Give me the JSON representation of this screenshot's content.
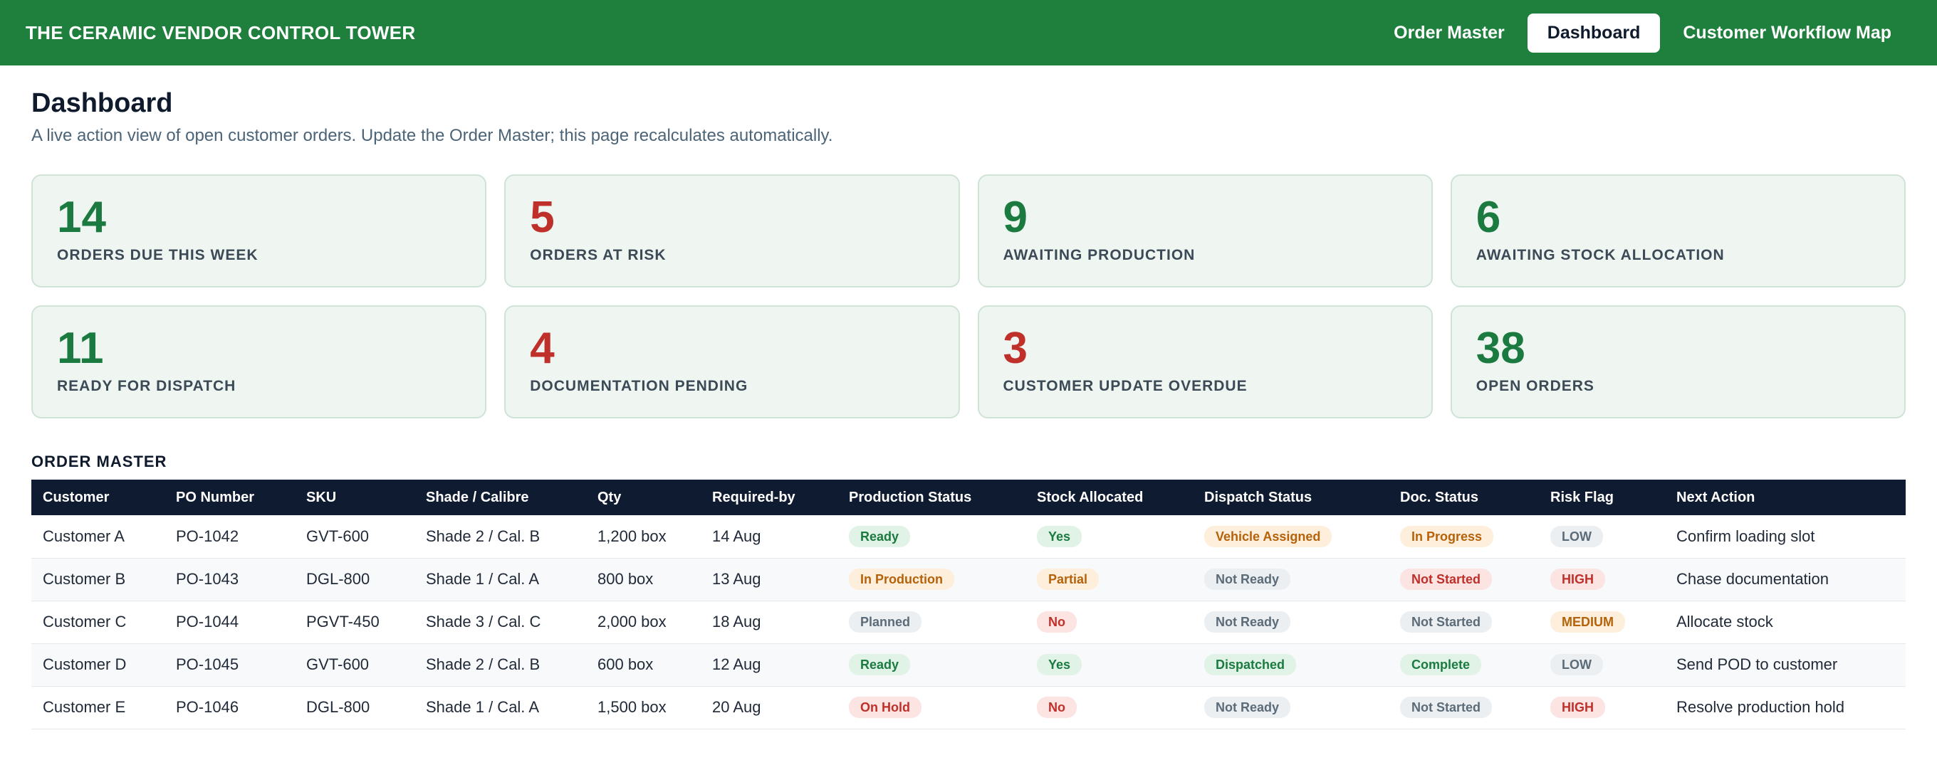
{
  "app": {
    "title": "THE CERAMIC VENDOR CONTROL TOWER",
    "nav": [
      {
        "label": "Order Master",
        "active": false
      },
      {
        "label": "Dashboard",
        "active": true
      },
      {
        "label": "Customer Workflow Map",
        "active": false
      }
    ]
  },
  "page": {
    "title": "Dashboard",
    "subtitle": "A live action view of open customer orders. Update the Order Master; this page recalculates automatically."
  },
  "kpis": [
    {
      "value": "14",
      "label": "ORDERS DUE THIS WEEK",
      "tone": "green"
    },
    {
      "value": "5",
      "label": "ORDERS AT RISK",
      "tone": "red"
    },
    {
      "value": "9",
      "label": "AWAITING PRODUCTION",
      "tone": "green"
    },
    {
      "value": "6",
      "label": "AWAITING STOCK ALLOCATION",
      "tone": "green"
    },
    {
      "value": "11",
      "label": "READY FOR DISPATCH",
      "tone": "green"
    },
    {
      "value": "4",
      "label": "DOCUMENTATION PENDING",
      "tone": "red"
    },
    {
      "value": "3",
      "label": "CUSTOMER UPDATE OVERDUE",
      "tone": "red"
    },
    {
      "value": "38",
      "label": "OPEN ORDERS",
      "tone": "green"
    }
  ],
  "order_master": {
    "title": "ORDER MASTER",
    "columns": [
      "Customer",
      "PO Number",
      "SKU",
      "Shade / Calibre",
      "Qty",
      "Required-by",
      "Production Status",
      "Stock Allocated",
      "Dispatch Status",
      "Doc. Status",
      "Risk Flag",
      "Next Action"
    ],
    "rows": [
      {
        "customer": "Customer A",
        "po": "PO-1042",
        "sku": "GVT-600",
        "shade": "Shade 2 / Cal. B",
        "qty": "1,200 box",
        "required_by": "14 Aug",
        "production": "Ready",
        "stock": "Yes",
        "dispatch": "Vehicle Assigned",
        "doc": "In Progress",
        "risk": "LOW",
        "next_action": "Confirm loading slot"
      },
      {
        "customer": "Customer B",
        "po": "PO-1043",
        "sku": "DGL-800",
        "shade": "Shade 1 / Cal. A",
        "qty": "800 box",
        "required_by": "13 Aug",
        "production": "In Production",
        "stock": "Partial",
        "dispatch": "Not Ready",
        "doc": "Not Started",
        "risk": "HIGH",
        "next_action": "Chase documentation"
      },
      {
        "customer": "Customer C",
        "po": "PO-1044",
        "sku": "PGVT-450",
        "shade": "Shade 3 / Cal. C",
        "qty": "2,000 box",
        "required_by": "18 Aug",
        "production": "Planned",
        "stock": "No",
        "dispatch": "Not Ready",
        "doc": "Not Started",
        "risk": "MEDIUM",
        "next_action": "Allocate stock"
      },
      {
        "customer": "Customer D",
        "po": "PO-1045",
        "sku": "GVT-600",
        "shade": "Shade 2 / Cal. B",
        "qty": "600 box",
        "required_by": "12 Aug",
        "production": "Ready",
        "stock": "Yes",
        "dispatch": "Dispatched",
        "doc": "Complete",
        "risk": "LOW",
        "next_action": "Send POD to customer"
      },
      {
        "customer": "Customer E",
        "po": "PO-1046",
        "sku": "DGL-800",
        "shade": "Shade 1 / Cal. A",
        "qty": "1,500 box",
        "required_by": "20 Aug",
        "production": "On Hold",
        "stock": "No",
        "dispatch": "Not Ready",
        "doc": "Not Started",
        "risk": "HIGH",
        "next_action": "Resolve production hold"
      }
    ]
  },
  "colors": {
    "header_bg": "#1f7f3d",
    "table_header_bg": "#0f1b30",
    "positive": "#1a7a40",
    "negative": "#c0302b"
  }
}
